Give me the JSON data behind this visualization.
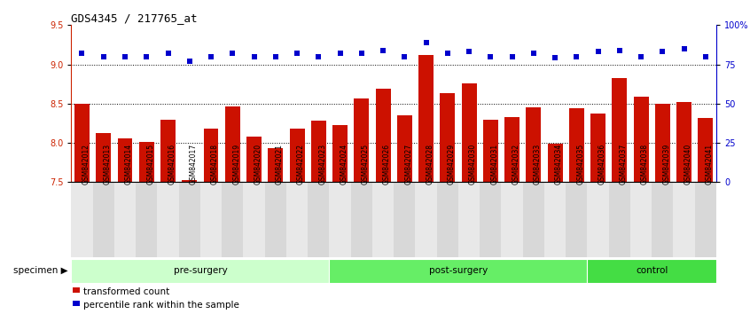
{
  "title": "GDS4345 / 217765_at",
  "samples": [
    "GSM842012",
    "GSM842013",
    "GSM842014",
    "GSM842015",
    "GSM842016",
    "GSM842017",
    "GSM842018",
    "GSM842019",
    "GSM842020",
    "GSM842021",
    "GSM842022",
    "GSM842023",
    "GSM842024",
    "GSM842025",
    "GSM842026",
    "GSM842027",
    "GSM842028",
    "GSM842029",
    "GSM842030",
    "GSM842031",
    "GSM842032",
    "GSM842033",
    "GSM842034",
    "GSM842035",
    "GSM842036",
    "GSM842037",
    "GSM842038",
    "GSM842039",
    "GSM842040",
    "GSM842041"
  ],
  "bar_values": [
    8.5,
    8.12,
    8.06,
    8.01,
    8.3,
    7.53,
    8.18,
    8.46,
    8.08,
    7.93,
    8.18,
    8.28,
    8.23,
    8.57,
    8.69,
    8.35,
    9.12,
    8.63,
    8.76,
    8.3,
    8.33,
    8.45,
    7.99,
    8.44,
    8.37,
    8.82,
    8.59,
    8.5,
    8.52,
    8.32
  ],
  "dot_values_pct": [
    82,
    80,
    80,
    80,
    82,
    77,
    80,
    82,
    80,
    80,
    82,
    80,
    82,
    82,
    84,
    80,
    89,
    82,
    83,
    80,
    80,
    82,
    79,
    80,
    83,
    84,
    80,
    83,
    85,
    80
  ],
  "bar_color": "#cc1100",
  "dot_color": "#0000cc",
  "ylim_left": [
    7.5,
    9.5
  ],
  "ylim_right": [
    0,
    100
  ],
  "yticks_left": [
    7.5,
    8.0,
    8.5,
    9.0,
    9.5
  ],
  "yticks_right": [
    0,
    25,
    50,
    75,
    100
  ],
  "ytick_labels_right": [
    "0",
    "25",
    "50",
    "75",
    "100%"
  ],
  "hlines": [
    8.0,
    8.5,
    9.0
  ],
  "groups": [
    {
      "label": "pre-surgery",
      "start": 0,
      "end": 12,
      "color": "#ccffcc"
    },
    {
      "label": "post-surgery",
      "start": 12,
      "end": 24,
      "color": "#66ee66"
    },
    {
      "label": "control",
      "start": 24,
      "end": 30,
      "color": "#44dd44"
    }
  ],
  "specimen_label": "specimen",
  "legend_items": [
    {
      "label": "transformed count",
      "color": "#cc1100"
    },
    {
      "label": "percentile rank within the sample",
      "color": "#0000cc"
    }
  ],
  "background_color": "#ffffff",
  "tick_label_color_left": "#cc2200",
  "tick_label_color_right": "#0000cc",
  "xtick_bg_colors": [
    "#e8e8e8",
    "#d8d8d8"
  ]
}
